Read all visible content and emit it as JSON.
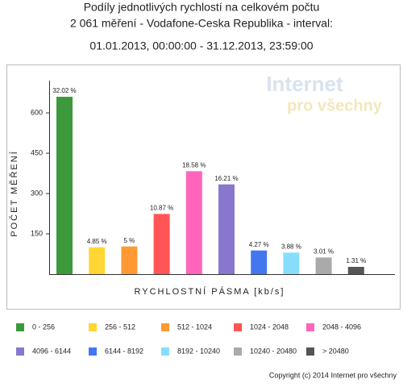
{
  "chart_data": {
    "type": "bar",
    "title": [
      "Podíly jednotlivých rychlostí na celkovém počtu",
      "2 061 měření - Vodafone-Ceska Republika - interval:",
      "01.01.2013, 00:00:00 - 31.12.2013, 23:59:00"
    ],
    "watermark": [
      "Internet",
      "pro všechny"
    ],
    "ylabel": "POČET MĚŘENÍ",
    "xlabel": "RYCHLOSTNÍ PÁSMA [kb/s]",
    "categories": [
      "0 - 256",
      "256 - 512",
      "512 - 1024",
      "1024 - 2048",
      "2048 - 4096",
      "4096 - 6144",
      "6144 - 8192",
      "8192 - 10240",
      "10240 - 20480",
      "> 20480"
    ],
    "values": [
      660,
      100,
      103,
      224,
      383,
      334,
      88,
      80,
      62,
      27
    ],
    "share_labels": [
      "32.02 %",
      "4.85 %",
      "5 %",
      "10.87 %",
      "18.58 %",
      "16.21 %",
      "4.27 %",
      "3.88 %",
      "3.01 %",
      "1.31 %"
    ],
    "colors": [
      "#3c9a3c",
      "#ffd633",
      "#ff9933",
      "#ff5555",
      "#ff66bb",
      "#8877cc",
      "#4477ee",
      "#88ddff",
      "#aaaaaa",
      "#555555"
    ],
    "ylim": [
      0,
      700
    ],
    "yticks": [
      150,
      300,
      450,
      600
    ],
    "copyright": "Copyright (c) 2014 Internet pro všechny"
  }
}
